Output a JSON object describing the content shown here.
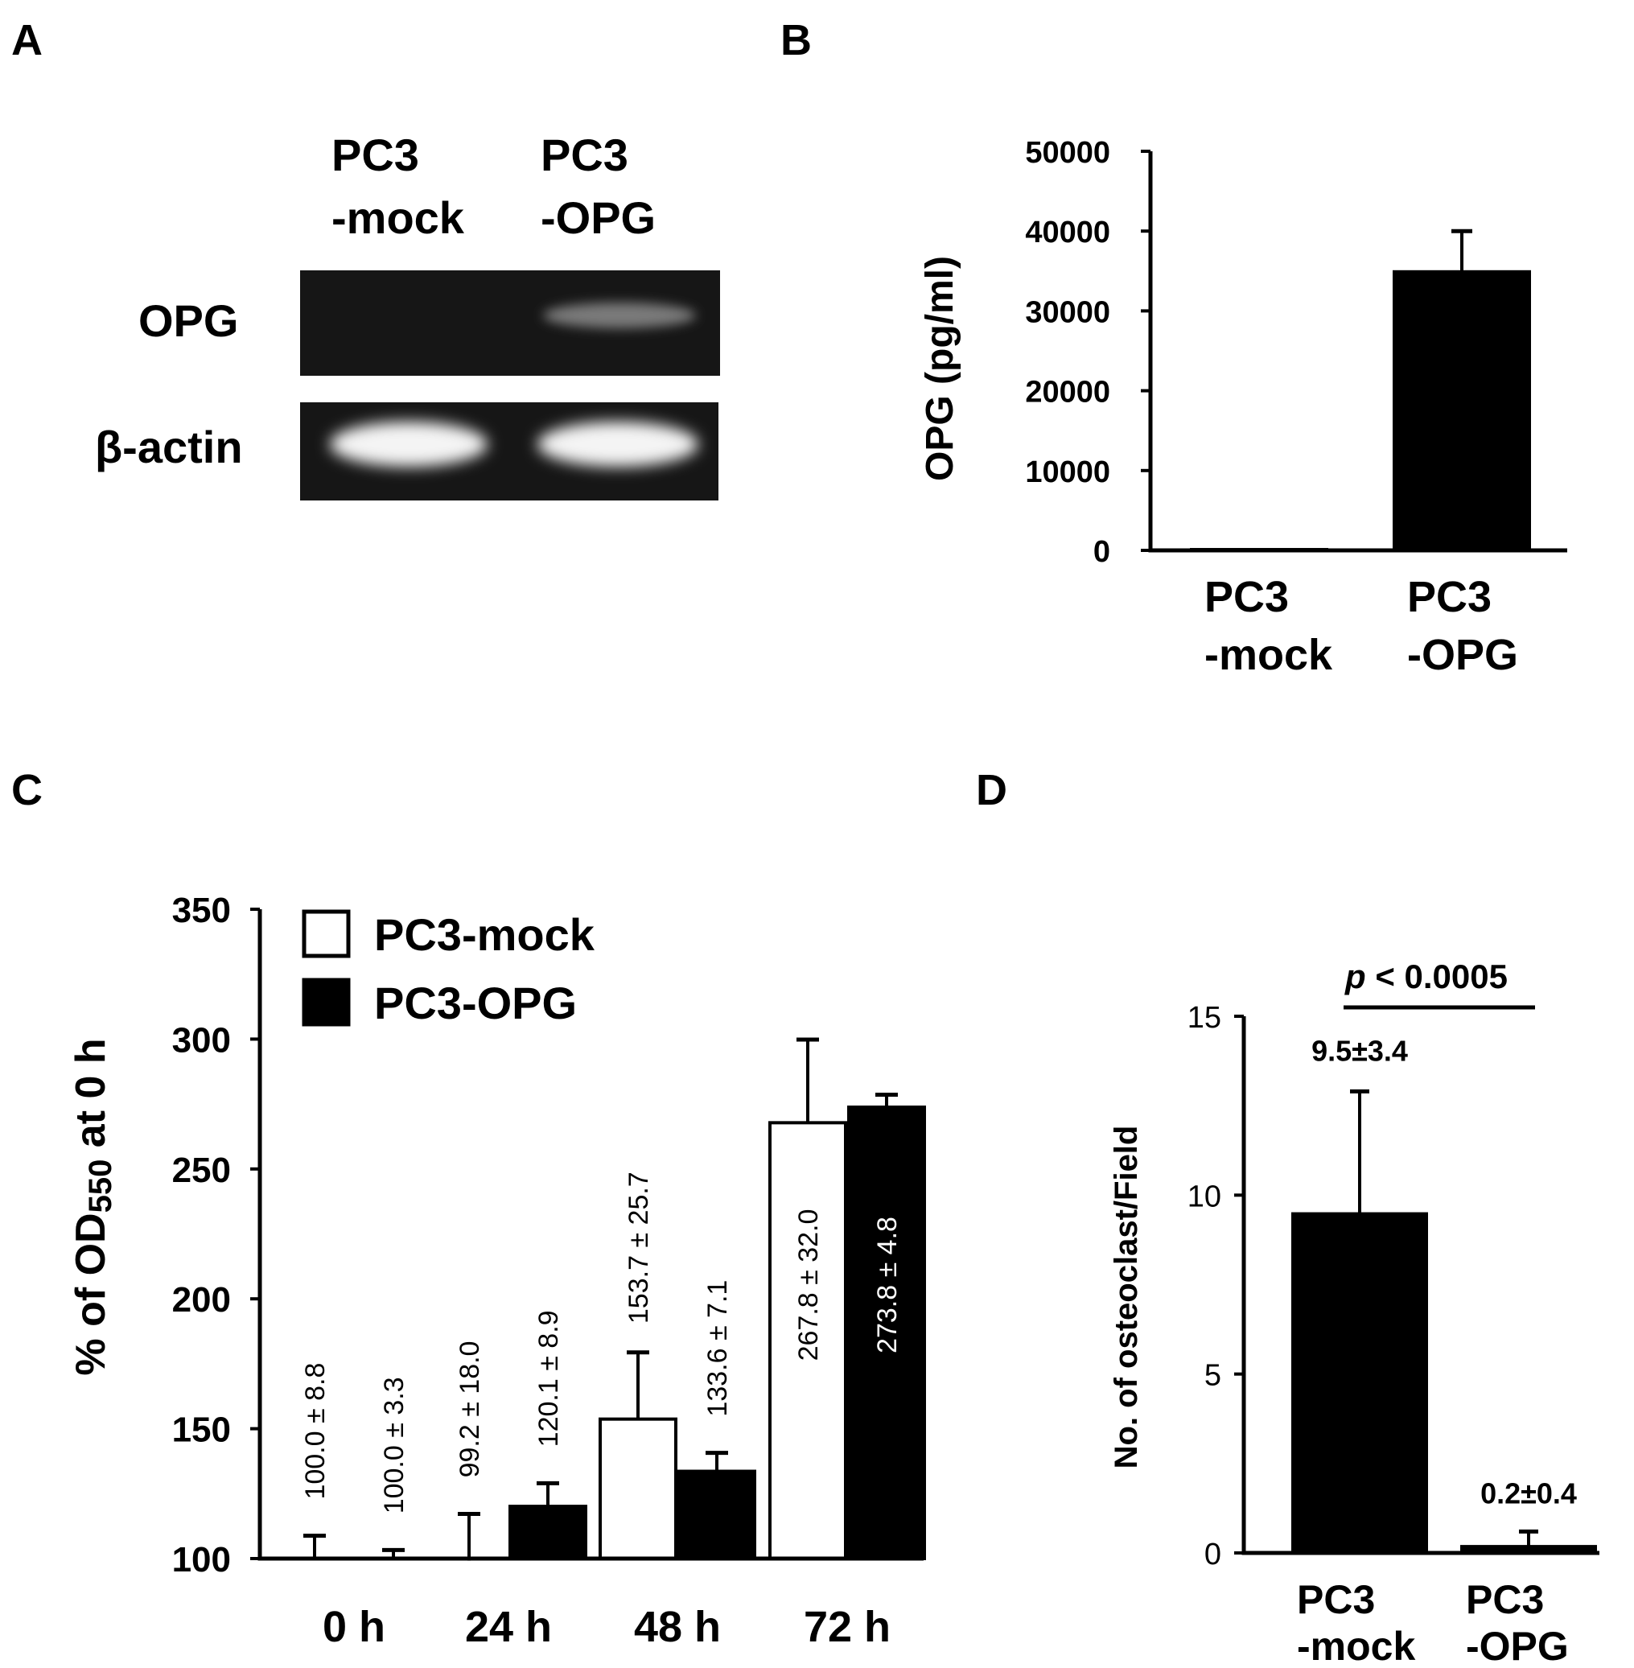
{
  "panels": {
    "a": {
      "letter": "A",
      "col1_line1": "PC3",
      "col1_line2": "-mock",
      "col2_line1": "PC3",
      "col2_line2": "-OPG",
      "row1_label": "OPG",
      "row2_label": "β-actin"
    },
    "b": {
      "letter": "B"
    },
    "c": {
      "letter": "C"
    },
    "d": {
      "letter": "D"
    }
  },
  "chart_data": [
    {
      "id": "B",
      "type": "bar",
      "categories": [
        "PC3\n-mock",
        "PC3\n-OPG"
      ],
      "values": [
        200,
        35000
      ],
      "errors": [
        0,
        5000
      ],
      "ylabel": "OPG (pg/ml)",
      "yticks": [
        0,
        10000,
        20000,
        30000,
        40000,
        50000
      ],
      "ylim": [
        0,
        50000
      ],
      "colors": [
        "#000000",
        "#000000"
      ]
    },
    {
      "id": "C",
      "type": "bar",
      "categories": [
        "0 h",
        "24 h",
        "48 h",
        "72 h"
      ],
      "series": [
        {
          "name": "PC3-mock",
          "fill": "#ffffff",
          "values": [
            100.0,
            99.2,
            153.7,
            267.8
          ],
          "errors": [
            8.8,
            18.0,
            25.7,
            32.0
          ],
          "labels": [
            "100.0 ± 8.8",
            "99.2 ± 18.0",
            "153.7 ± 25.7",
            "267.8 ± 32.0"
          ]
        },
        {
          "name": "PC3-OPG",
          "fill": "#000000",
          "values": [
            100.0,
            120.1,
            133.6,
            273.8
          ],
          "errors": [
            3.3,
            8.9,
            7.1,
            4.8
          ],
          "labels": [
            "100.0 ± 3.3",
            "120.1 ± 8.9",
            "133.6 ± 7.1",
            "273.8 ± 4.8"
          ]
        }
      ],
      "ylabel": "% of OD550 at 0 h",
      "ylabel_main_a": "% of OD",
      "ylabel_sub": "550",
      "ylabel_main_b": " at 0 h",
      "yticks": [
        100,
        150,
        200,
        250,
        300,
        350
      ],
      "ylim": [
        100,
        350
      ],
      "legend": "top-left"
    },
    {
      "id": "D",
      "type": "bar",
      "categories": [
        "PC3\n-mock",
        "PC3\n-OPG"
      ],
      "values": [
        9.5,
        0.2
      ],
      "errors": [
        3.4,
        0.4
      ],
      "labels": [
        "9.5±3.4",
        "0.2±0.4"
      ],
      "ylabel": "No. of osteoclast/Field",
      "yticks": [
        0,
        5,
        10,
        15
      ],
      "ylim": [
        0,
        15
      ],
      "annotation_p": "p",
      "annotation_rest": " < 0.0005",
      "colors": [
        "#000000",
        "#000000"
      ]
    }
  ]
}
